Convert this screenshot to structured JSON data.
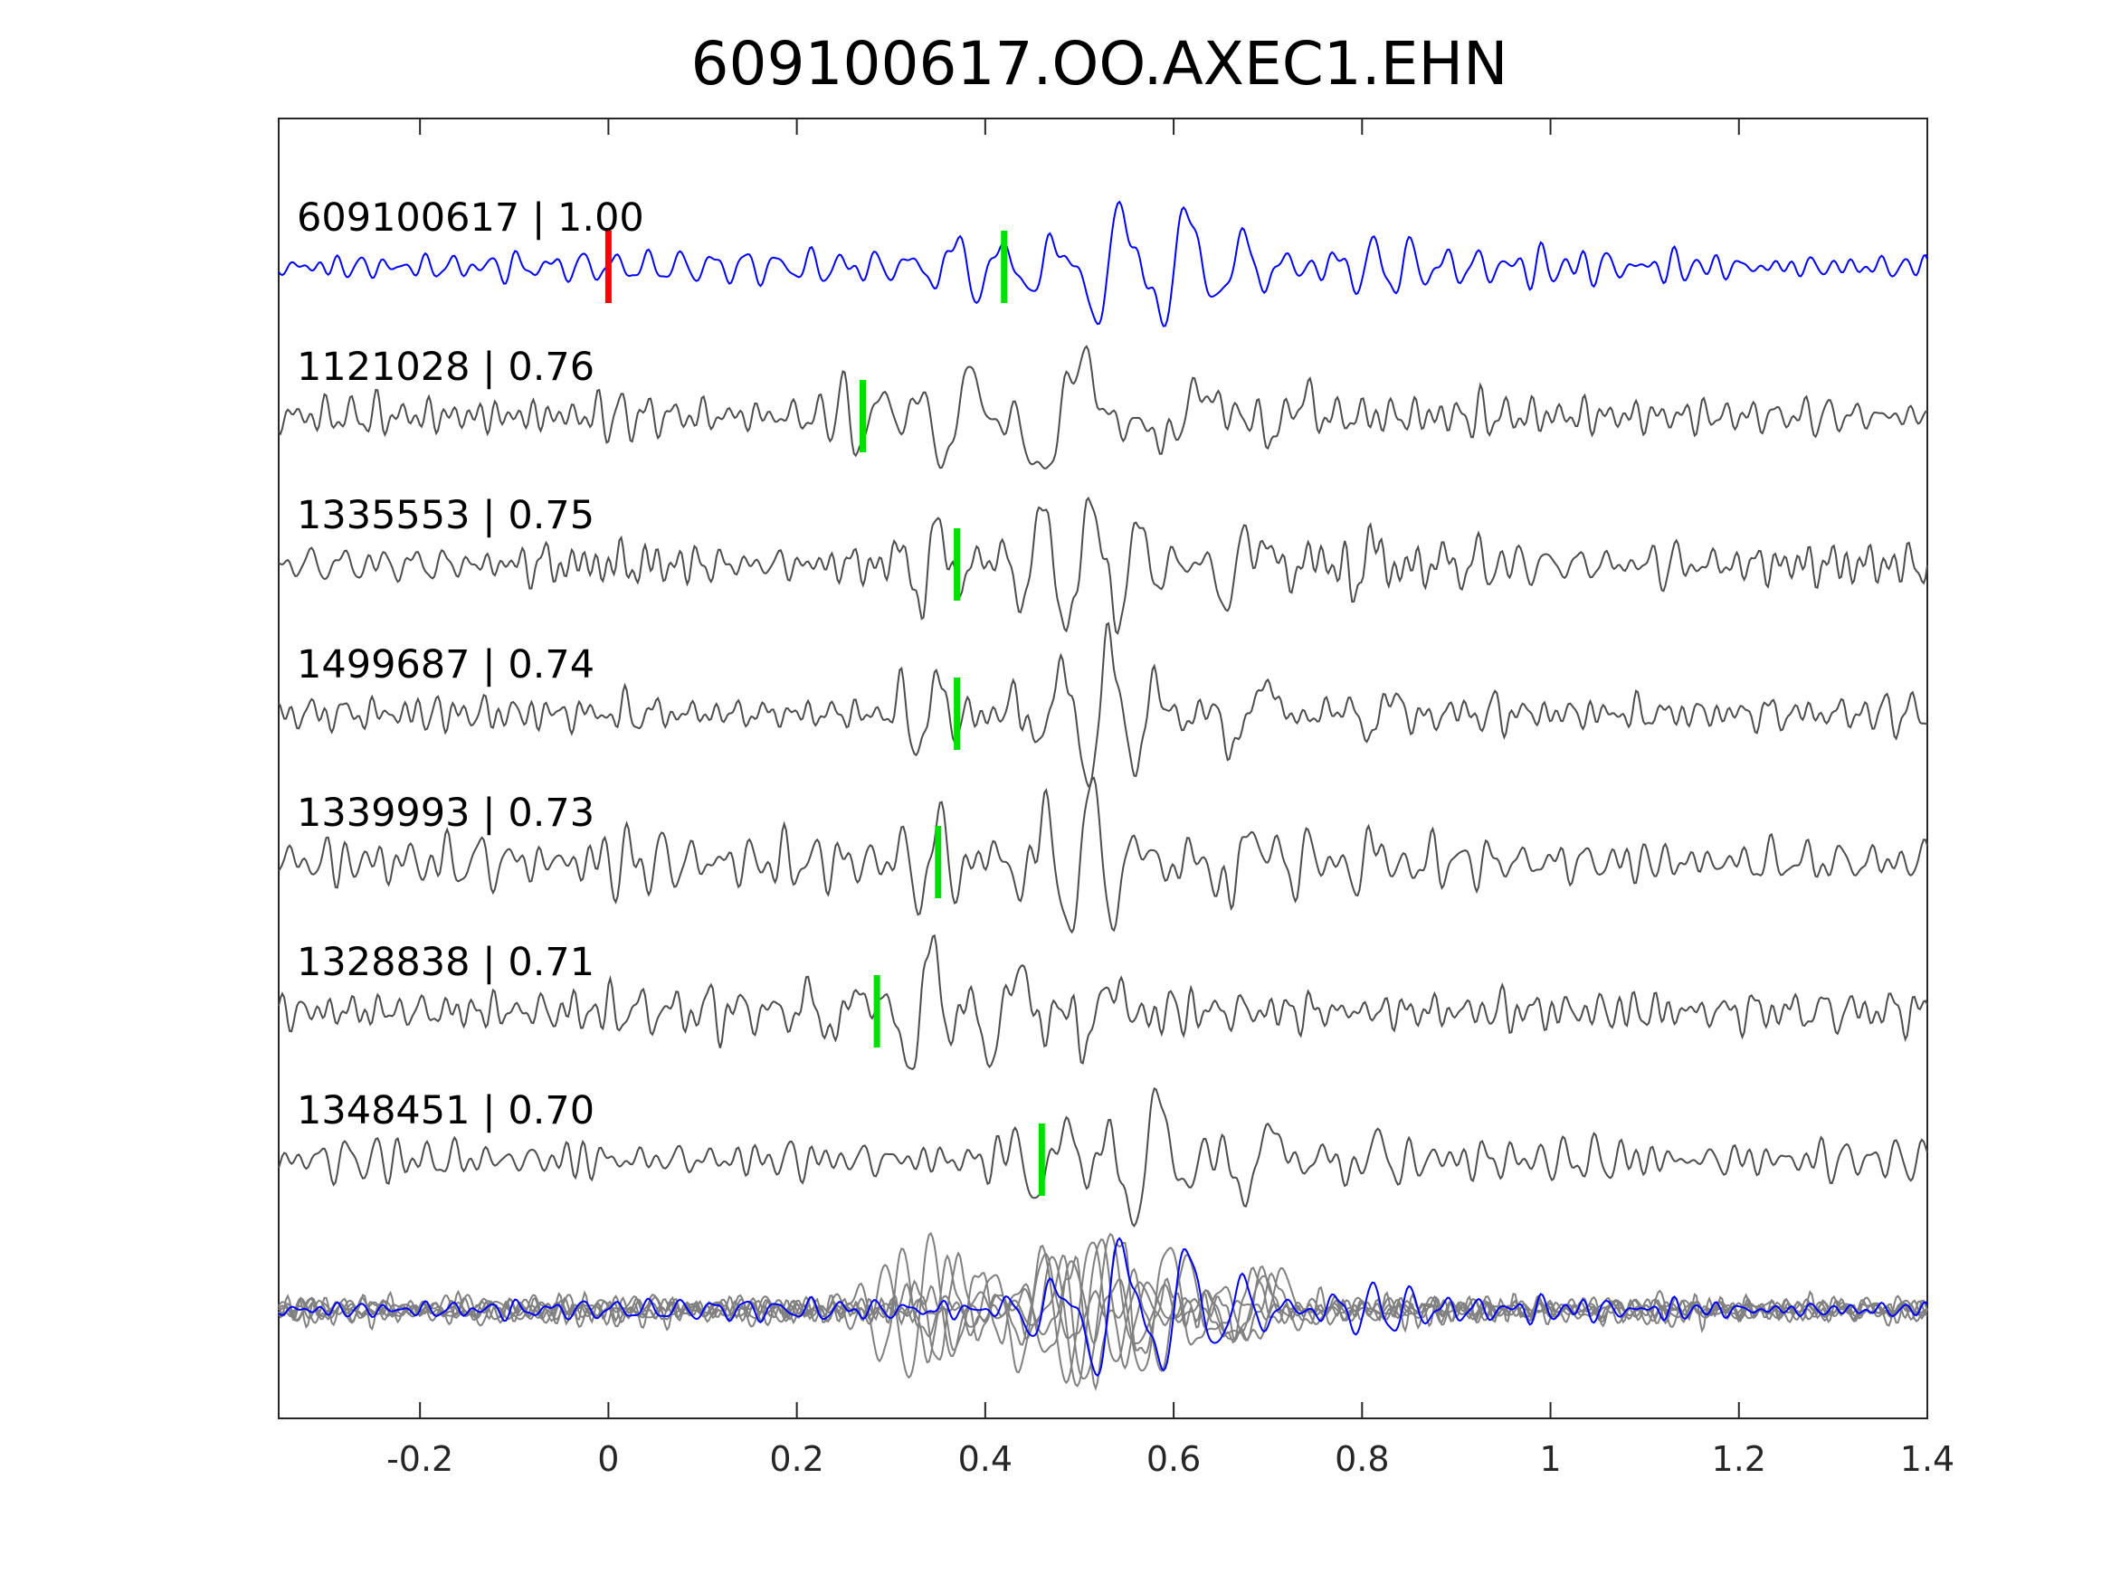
{
  "chart_data": {
    "type": "line",
    "title": "609100617.OO.AXEC1.EHN",
    "xlabel": "",
    "ylabel": "",
    "xlim": [
      -0.35,
      1.4
    ],
    "xticks": [
      -0.2,
      0,
      0.2,
      0.4,
      0.6,
      0.8,
      1,
      1.2,
      1.4
    ],
    "xtick_labels": [
      "-0.2",
      "0",
      "0.2",
      "0.4",
      "0.6",
      "0.8",
      "1",
      "1.2",
      "1.4"
    ],
    "grid": false,
    "colors": {
      "template": "#0000ff",
      "match": "#4d4d4d",
      "stack": "#808080",
      "red_pick": "#ff0000",
      "green_pick": "#00e000",
      "axes": "#262626"
    },
    "traces": [
      {
        "label": "609100617 | 1.00",
        "template": true,
        "red_pick": 0.0,
        "green_pick": 0.42,
        "packets": [
          [
            0.38,
            0.04,
            -0.55,
            0.045
          ],
          [
            0.46,
            0.03,
            0.45,
            0.048
          ],
          [
            0.53,
            0.03,
            1.0,
            0.058
          ],
          [
            0.6,
            0.035,
            0.85,
            0.058
          ],
          [
            0.66,
            0.04,
            0.45,
            0.05
          ],
          [
            0.8,
            0.06,
            0.35,
            0.04
          ]
        ]
      },
      {
        "label": "1121028 | 0.76",
        "green_pick": 0.27,
        "packets": [
          [
            0.28,
            0.035,
            0.5,
            0.045
          ],
          [
            0.37,
            0.045,
            0.75,
            0.06
          ],
          [
            0.48,
            0.05,
            1.0,
            0.1
          ],
          [
            0.61,
            0.035,
            0.55,
            0.11
          ],
          [
            0.72,
            0.03,
            0.35,
            0.08
          ]
        ]
      },
      {
        "label": "1335553 | 0.75",
        "green_pick": 0.37,
        "packets": [
          [
            0.34,
            0.035,
            0.6,
            0.045
          ],
          [
            0.5,
            0.07,
            1.0,
            0.052
          ],
          [
            0.67,
            0.035,
            0.5,
            0.08
          ],
          [
            0.8,
            0.05,
            0.25,
            0.06
          ]
        ]
      },
      {
        "label": "1499687 | 0.74",
        "green_pick": 0.37,
        "packets": [
          [
            0.34,
            0.035,
            0.55,
            0.045
          ],
          [
            0.52,
            0.07,
            1.0,
            0.052
          ],
          [
            0.68,
            0.035,
            0.55,
            0.08
          ],
          [
            0.82,
            0.05,
            0.25,
            0.06
          ]
        ]
      },
      {
        "label": "1339993 | 0.73",
        "green_pick": 0.35,
        "packets": [
          [
            0.34,
            0.035,
            0.55,
            0.045
          ],
          [
            0.5,
            0.07,
            1.0,
            0.052
          ],
          [
            0.67,
            0.035,
            0.5,
            0.08
          ],
          [
            0.8,
            0.05,
            0.25,
            0.06
          ]
        ]
      },
      {
        "label": "1328838 | 0.71",
        "green_pick": 0.285,
        "packets": [
          [
            0.25,
            0.04,
            0.45,
            0.05
          ],
          [
            0.33,
            0.04,
            1.0,
            0.055
          ],
          [
            0.42,
            0.04,
            0.8,
            0.06
          ],
          [
            0.52,
            0.04,
            0.45,
            0.07
          ]
        ]
      },
      {
        "label": "1348451 | 0.70",
        "green_pick": 0.46,
        "packets": [
          [
            0.47,
            0.045,
            0.6,
            0.06
          ],
          [
            0.57,
            0.045,
            1.0,
            0.06
          ],
          [
            0.69,
            0.04,
            0.55,
            0.07
          ],
          [
            0.8,
            0.05,
            0.25,
            0.06
          ]
        ]
      }
    ],
    "stack": {
      "gray_packets": [
        [
          [
            0.33,
            0.05,
            0.9,
            0.05
          ],
          [
            0.52,
            0.05,
            1.0,
            0.055
          ],
          [
            0.68,
            0.04,
            0.45,
            0.065
          ]
        ],
        [
          [
            0.3,
            0.04,
            0.7,
            0.05
          ],
          [
            0.45,
            0.05,
            0.8,
            0.055
          ],
          [
            0.6,
            0.05,
            0.7,
            0.06
          ]
        ],
        [
          [
            0.36,
            0.04,
            0.6,
            0.05
          ],
          [
            0.5,
            0.06,
            1.0,
            0.052
          ],
          [
            0.67,
            0.035,
            0.5,
            0.065
          ]
        ],
        [
          [
            0.38,
            0.04,
            0.55,
            0.05
          ],
          [
            0.53,
            0.06,
            0.9,
            0.052
          ],
          [
            0.69,
            0.035,
            0.45,
            0.07
          ]
        ],
        [
          [
            0.35,
            0.04,
            0.6,
            0.05
          ],
          [
            0.51,
            0.06,
            0.95,
            0.052
          ],
          [
            0.68,
            0.035,
            0.5,
            0.065
          ]
        ],
        [
          [
            0.48,
            0.05,
            0.6,
            0.06
          ],
          [
            0.58,
            0.05,
            0.9,
            0.06
          ],
          [
            0.7,
            0.04,
            0.5,
            0.07
          ]
        ]
      ],
      "blue_packets": [
        [
          0.46,
          0.03,
          0.4,
          0.048
        ],
        [
          0.53,
          0.03,
          1.0,
          0.058
        ],
        [
          0.6,
          0.035,
          0.8,
          0.058
        ],
        [
          0.66,
          0.04,
          0.4,
          0.05
        ],
        [
          0.8,
          0.06,
          0.3,
          0.04
        ]
      ]
    }
  }
}
